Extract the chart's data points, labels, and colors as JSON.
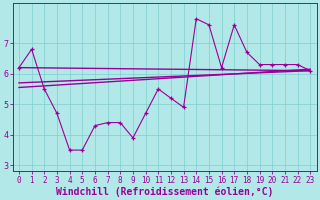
{
  "xlabel": "Windchill (Refroidissement éolien,°C)",
  "bg_color": "#b3e8e8",
  "line_color": "#990099",
  "x_data": [
    0,
    1,
    2,
    3,
    4,
    5,
    6,
    7,
    8,
    9,
    10,
    11,
    12,
    13,
    14,
    15,
    16,
    17,
    18,
    19,
    20,
    21,
    22,
    23
  ],
  "y_scatter": [
    6.2,
    6.8,
    5.5,
    4.7,
    3.5,
    3.5,
    4.3,
    4.4,
    4.4,
    3.9,
    4.7,
    5.5,
    5.2,
    4.9,
    7.8,
    7.6,
    6.2,
    7.6,
    6.7,
    6.3,
    6.3,
    6.3,
    6.3,
    6.1
  ],
  "reg_lines": [
    {
      "x0": 0,
      "y0": 6.2,
      "x1": 23,
      "y1": 6.1
    },
    {
      "x0": 0,
      "y0": 5.7,
      "x1": 23,
      "y1": 6.1
    },
    {
      "x0": 0,
      "y0": 5.55,
      "x1": 23,
      "y1": 6.15
    }
  ],
  "ylim": [
    2.8,
    8.3
  ],
  "xlim": [
    -0.5,
    23.5
  ],
  "yticks": [
    3,
    4,
    5,
    6,
    7
  ],
  "xticks": [
    0,
    1,
    2,
    3,
    4,
    5,
    6,
    7,
    8,
    9,
    10,
    11,
    12,
    13,
    14,
    15,
    16,
    17,
    18,
    19,
    20,
    21,
    22,
    23
  ],
  "grid_color": "#7ecece",
  "grid_linewidth": 0.5,
  "tick_fontsize": 5.5,
  "label_fontsize": 7.0,
  "line_linewidth": 0.8,
  "reg_linewidth": 1.0,
  "marker_size": 3.5,
  "marker_ew": 0.9
}
